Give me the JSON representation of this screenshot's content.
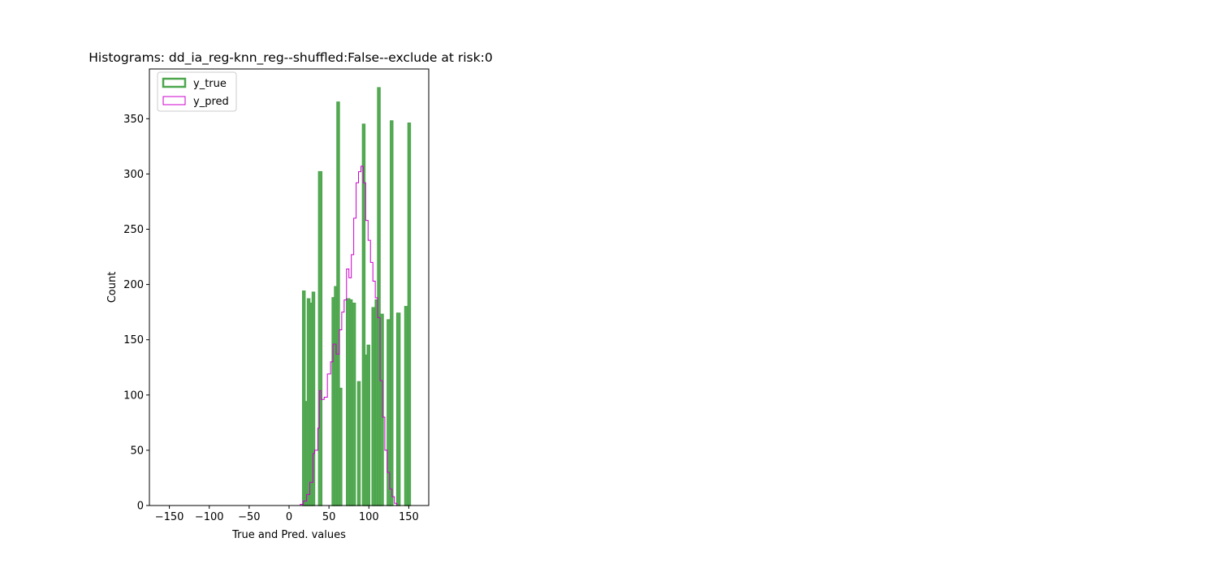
{
  "chart_data": {
    "type": "histogram",
    "title": "Histograms: dd_ia_reg-knn_reg--shuffled:False--exclude at risk:0",
    "xlabel": "True and Pred. values",
    "ylabel": "Count",
    "xlim": [
      -175,
      175
    ],
    "ylim": [
      0,
      395
    ],
    "xticks": [
      -150,
      -100,
      -50,
      0,
      50,
      100,
      150
    ],
    "xtick_labels": [
      "−150",
      "−100",
      "−50",
      "0",
      "50",
      "100",
      "150"
    ],
    "yticks": [
      0,
      50,
      100,
      150,
      200,
      250,
      300,
      350
    ],
    "ytick_labels": [
      "0",
      "50",
      "100",
      "150",
      "200",
      "250",
      "300",
      "350"
    ],
    "grid": false,
    "legend_position": "upper-left",
    "series": [
      {
        "name": "y_true",
        "style": "filled-step",
        "color": "#4da64d",
        "bins": [
          {
            "x0": 17,
            "x1": 20,
            "y": 194
          },
          {
            "x0": 20,
            "x1": 23,
            "y": 94
          },
          {
            "x0": 23,
            "x1": 26,
            "y": 187
          },
          {
            "x0": 26,
            "x1": 29,
            "y": 183
          },
          {
            "x0": 29,
            "x1": 32,
            "y": 193
          },
          {
            "x0": 37,
            "x1": 41,
            "y": 302
          },
          {
            "x0": 54,
            "x1": 57,
            "y": 188
          },
          {
            "x0": 57,
            "x1": 60,
            "y": 198
          },
          {
            "x0": 60,
            "x1": 63,
            "y": 365
          },
          {
            "x0": 63,
            "x1": 66,
            "y": 106
          },
          {
            "x0": 72,
            "x1": 76,
            "y": 187
          },
          {
            "x0": 76,
            "x1": 79,
            "y": 186
          },
          {
            "x0": 79,
            "x1": 83,
            "y": 183
          },
          {
            "x0": 86,
            "x1": 89,
            "y": 112
          },
          {
            "x0": 92,
            "x1": 95,
            "y": 345
          },
          {
            "x0": 95,
            "x1": 98,
            "y": 136
          },
          {
            "x0": 98,
            "x1": 101,
            "y": 145
          },
          {
            "x0": 104,
            "x1": 107,
            "y": 179
          },
          {
            "x0": 108,
            "x1": 111,
            "y": 186
          },
          {
            "x0": 111,
            "x1": 114,
            "y": 378
          },
          {
            "x0": 114,
            "x1": 118,
            "y": 173
          },
          {
            "x0": 123,
            "x1": 127,
            "y": 168
          },
          {
            "x0": 127,
            "x1": 130,
            "y": 348
          },
          {
            "x0": 135,
            "x1": 139,
            "y": 174
          },
          {
            "x0": 145,
            "x1": 149,
            "y": 180
          },
          {
            "x0": 149,
            "x1": 152,
            "y": 346
          }
        ]
      },
      {
        "name": "y_pred",
        "style": "step",
        "color": "#cc00cc",
        "bins": [
          {
            "x0": 10,
            "x1": 14,
            "y": 0
          },
          {
            "x0": 14,
            "x1": 18,
            "y": 1
          },
          {
            "x0": 18,
            "x1": 22,
            "y": 4
          },
          {
            "x0": 22,
            "x1": 26,
            "y": 10
          },
          {
            "x0": 26,
            "x1": 30,
            "y": 21
          },
          {
            "x0": 30,
            "x1": 32,
            "y": 47
          },
          {
            "x0": 32,
            "x1": 36,
            "y": 50
          },
          {
            "x0": 36,
            "x1": 38,
            "y": 70
          },
          {
            "x0": 38,
            "x1": 40,
            "y": 104
          },
          {
            "x0": 40,
            "x1": 44,
            "y": 96
          },
          {
            "x0": 44,
            "x1": 48,
            "y": 98
          },
          {
            "x0": 48,
            "x1": 52,
            "y": 119
          },
          {
            "x0": 52,
            "x1": 55,
            "y": 130
          },
          {
            "x0": 55,
            "x1": 59,
            "y": 146
          },
          {
            "x0": 59,
            "x1": 63,
            "y": 137
          },
          {
            "x0": 63,
            "x1": 66,
            "y": 159
          },
          {
            "x0": 66,
            "x1": 69,
            "y": 175
          },
          {
            "x0": 69,
            "x1": 72,
            "y": 186
          },
          {
            "x0": 72,
            "x1": 75,
            "y": 214
          },
          {
            "x0": 75,
            "x1": 78,
            "y": 206
          },
          {
            "x0": 78,
            "x1": 81,
            "y": 227
          },
          {
            "x0": 81,
            "x1": 84,
            "y": 260
          },
          {
            "x0": 84,
            "x1": 87,
            "y": 292
          },
          {
            "x0": 87,
            "x1": 90,
            "y": 302
          },
          {
            "x0": 90,
            "x1": 93,
            "y": 307
          },
          {
            "x0": 93,
            "x1": 96,
            "y": 292
          },
          {
            "x0": 96,
            "x1": 99,
            "y": 258
          },
          {
            "x0": 99,
            "x1": 102,
            "y": 240
          },
          {
            "x0": 102,
            "x1": 105,
            "y": 220
          },
          {
            "x0": 105,
            "x1": 108,
            "y": 203
          },
          {
            "x0": 108,
            "x1": 111,
            "y": 188
          },
          {
            "x0": 111,
            "x1": 114,
            "y": 170
          },
          {
            "x0": 114,
            "x1": 117,
            "y": 113
          },
          {
            "x0": 117,
            "x1": 120,
            "y": 80
          },
          {
            "x0": 120,
            "x1": 123,
            "y": 50
          },
          {
            "x0": 123,
            "x1": 126,
            "y": 30
          },
          {
            "x0": 126,
            "x1": 129,
            "y": 15
          },
          {
            "x0": 129,
            "x1": 132,
            "y": 8
          },
          {
            "x0": 132,
            "x1": 135,
            "y": 2
          },
          {
            "x0": 135,
            "x1": 140,
            "y": 0
          }
        ]
      }
    ]
  }
}
